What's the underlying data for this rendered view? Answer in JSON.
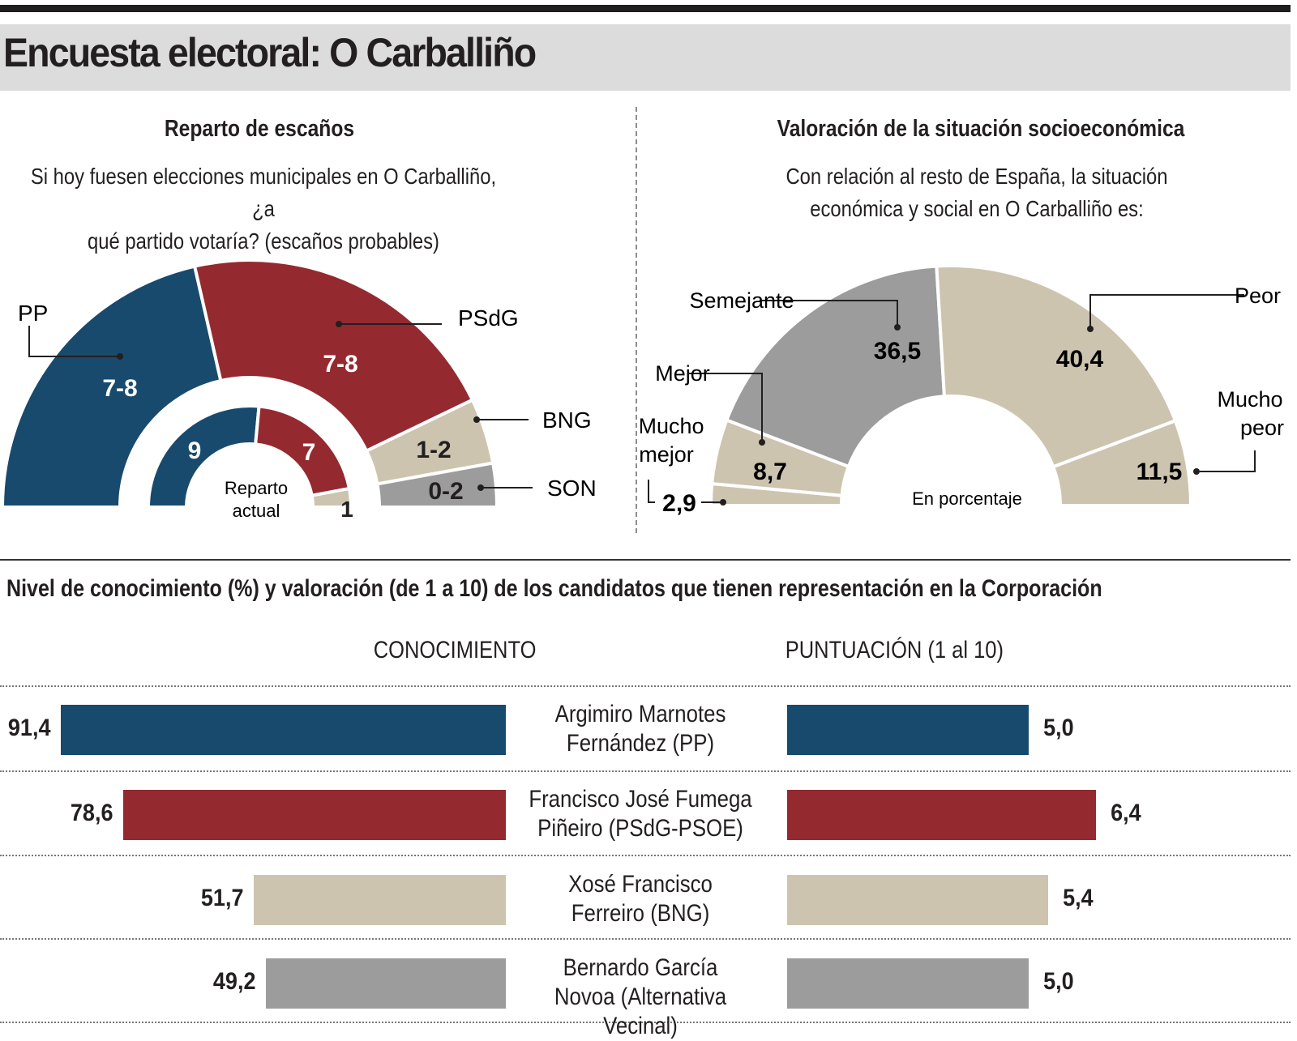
{
  "title": "Encuesta electoral: O Carballiño",
  "colors": {
    "pp": "#184a6e",
    "psdg": "#942a30",
    "bng": "#cdc4b0",
    "son": "#9c9c9c",
    "gris": "#9c9c9c",
    "beige": "#cdc4b0"
  },
  "seats": {
    "title": "Reparto de escaños",
    "subtitle_1": "Si hoy fuesen elecciones municipales en O Carballiño, ¿a",
    "subtitle_2": "qué partido votaría? (escaños probables)",
    "center_label_1": "Reparto",
    "center_label_2": "actual"
  },
  "socio": {
    "title": "Valoración de la situación socioeconómica",
    "subtitle_1": "Con relación al resto de España, la situación",
    "subtitle_2": "económica y social en  O Carballiño es:",
    "center_label": "En porcentaje"
  },
  "candidates_section": {
    "title": "Nivel de conocimiento (%) y valoración (de 1 a 10) de los candidatos que tienen representación en la Corporación",
    "col_knowledge": "CONOCIMIENTO",
    "col_score": "PUNTUACIÓN (1 al 10)"
  },
  "chart_data": [
    {
      "type": "pie",
      "chart": "seats-hemicycle",
      "title": "Reparto de escaños",
      "outer_ring": {
        "categories": [
          "PP",
          "PSdG",
          "BNG",
          "SON"
        ],
        "labels": [
          "7-8",
          "7-8",
          "1-2",
          "0-2"
        ],
        "values": [
          7.5,
          7.5,
          1.5,
          1
        ],
        "colors": [
          "#184a6e",
          "#942a30",
          "#cdc4b0",
          "#9c9c9c"
        ]
      },
      "inner_ring": {
        "name": "Reparto actual",
        "labels": [
          "9",
          "7",
          "1"
        ],
        "values": [
          9,
          7,
          1
        ],
        "colors": [
          "#184a6e",
          "#942a30",
          "#cdc4b0"
        ]
      }
    },
    {
      "type": "pie",
      "chart": "socio-donut",
      "title": "Valoración de la situación socioeconómica",
      "categories": [
        "Mucho mejor",
        "Mejor",
        "Semejante",
        "Peor",
        "Mucho peor"
      ],
      "labels": [
        "2,9",
        "8,7",
        "36,5",
        "40,4",
        "11,5"
      ],
      "values": [
        2.9,
        8.7,
        36.5,
        40.4,
        11.5
      ],
      "colors": [
        "#cdc4b0",
        "#cdc4b0",
        "#9c9c9c",
        "#cdc4b0",
        "#cdc4b0"
      ]
    },
    {
      "type": "bar",
      "chart": "candidates",
      "categories_line1": [
        "Argimiro Marnotes",
        "Francisco José Fumega",
        "Xosé Francisco",
        "Bernardo García"
      ],
      "categories_line2": [
        "Fernández (PP)",
        "Piñeiro (PSdG-PSOE)",
        "Ferreiro (BNG)",
        "Novoa (Alternativa Vecinal)"
      ],
      "colors": [
        "#184a6e",
        "#942a30",
        "#cdc4b0",
        "#9c9c9c"
      ],
      "series": [
        {
          "name": "CONOCIMIENTO",
          "values": [
            91.4,
            78.6,
            51.7,
            49.2
          ],
          "labels": [
            "91,4",
            "78,6",
            "51,7",
            "49,2"
          ]
        },
        {
          "name": "PUNTUACIÓN (1 al 10)",
          "values": [
            5.0,
            6.4,
            5.4,
            5.0
          ],
          "labels": [
            "5,0",
            "6,4",
            "5,4",
            "5,0"
          ]
        }
      ]
    }
  ]
}
